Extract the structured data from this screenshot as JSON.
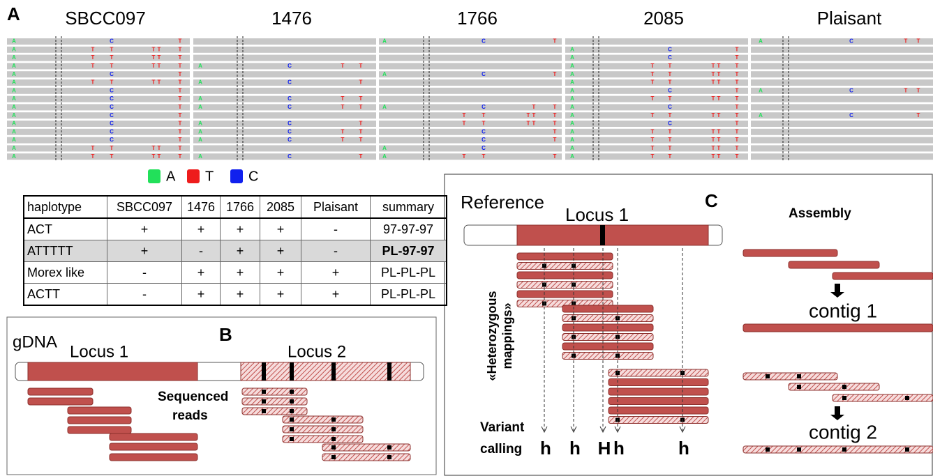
{
  "panel_a": {
    "label": "A",
    "legend": [
      {
        "label": "A",
        "color": "#22e05a"
      },
      {
        "label": "T",
        "color": "#ee1c1c"
      },
      {
        "label": "C",
        "color": "#1020ee"
      }
    ],
    "samples": [
      {
        "name": "SBCC097",
        "rows": [
          [
            "A",
            null,
            "C",
            null,
            null,
            "T"
          ],
          [
            "A",
            "T",
            "T",
            "T",
            "T",
            "T"
          ],
          [
            "A",
            "T",
            "T",
            "T",
            "T",
            "T"
          ],
          [
            "A",
            "T",
            "T",
            "T",
            "T",
            "T"
          ],
          [
            "A",
            null,
            "C",
            null,
            null,
            "T"
          ],
          [
            "A",
            "T",
            "T",
            "T",
            "T",
            "T"
          ],
          [
            "A",
            null,
            "C",
            null,
            null,
            "T"
          ],
          [
            "A",
            null,
            "C",
            null,
            null,
            "T"
          ],
          [
            "A",
            null,
            "C",
            null,
            null,
            "T"
          ],
          [
            "A",
            null,
            "C",
            null,
            null,
            "T"
          ],
          [
            "A",
            null,
            "C",
            null,
            null,
            "T"
          ],
          [
            "A",
            null,
            "C",
            null,
            null,
            "T"
          ],
          [
            "A",
            null,
            "C",
            null,
            null,
            "T"
          ],
          [
            "A",
            "T",
            "T",
            "T",
            "T",
            "T"
          ],
          [
            "A",
            "T",
            "T",
            "T",
            "T",
            "T"
          ]
        ]
      },
      {
        "name": "1476",
        "rows": [
          [
            null,
            null,
            null,
            null
          ],
          [
            null,
            null,
            null,
            null
          ],
          [
            null,
            null,
            null,
            null
          ],
          [
            "A",
            "C",
            "T",
            "T"
          ],
          [
            null,
            null,
            null,
            null
          ],
          [
            "A",
            "C",
            null,
            "T"
          ],
          [
            null,
            null,
            null,
            null
          ],
          [
            "A",
            "C",
            "T",
            "T"
          ],
          [
            "A",
            "C",
            "T",
            "T"
          ],
          [
            null,
            null,
            null,
            null
          ],
          [
            "A",
            "C",
            null,
            "T"
          ],
          [
            "A",
            "C",
            "T",
            "T"
          ],
          [
            "A",
            "C",
            "T",
            "T"
          ],
          [
            null,
            null,
            null,
            null
          ],
          [
            "A",
            "C",
            null,
            "T"
          ]
        ]
      },
      {
        "name": "1766",
        "rows": [
          [
            "A",
            null,
            "C",
            null,
            null,
            "T"
          ],
          [
            null,
            null,
            null,
            null,
            null,
            null
          ],
          [
            null,
            null,
            null,
            null,
            null,
            null
          ],
          [
            null,
            null,
            null,
            null,
            null,
            null
          ],
          [
            "A",
            null,
            "C",
            null,
            null,
            "T"
          ],
          [
            null,
            null,
            null,
            null,
            null,
            null
          ],
          [
            null,
            null,
            null,
            null,
            null,
            null
          ],
          [
            null,
            null,
            null,
            null,
            null,
            null
          ],
          [
            "A",
            null,
            "C",
            null,
            "T",
            "T"
          ],
          [
            null,
            "T",
            "T",
            "T",
            "T",
            "T"
          ],
          [
            null,
            "T",
            "T",
            "T",
            "T",
            "T"
          ],
          [
            null,
            null,
            "C",
            null,
            null,
            "T"
          ],
          [
            null,
            null,
            "C",
            null,
            null,
            "T"
          ],
          [
            "A",
            null,
            "C",
            null,
            null,
            null
          ],
          [
            "A",
            "T",
            "T",
            null,
            null,
            "T"
          ]
        ]
      },
      {
        "name": "2085",
        "rows": [
          [
            null,
            null,
            null,
            null,
            null,
            null
          ],
          [
            "A",
            null,
            "C",
            null,
            null,
            "T"
          ],
          [
            "A",
            null,
            "C",
            null,
            null,
            "T"
          ],
          [
            "A",
            "T",
            "T",
            "T",
            "T",
            "T"
          ],
          [
            "A",
            "T",
            "T",
            "T",
            "T",
            "T"
          ],
          [
            "A",
            "T",
            "T",
            "T",
            "T",
            "T"
          ],
          [
            "A",
            null,
            "C",
            null,
            null,
            "T"
          ],
          [
            "A",
            "T",
            "T",
            "T",
            "T",
            "T"
          ],
          [
            "A",
            null,
            "C",
            null,
            null,
            "T"
          ],
          [
            "A",
            "T",
            "T",
            "T",
            "T",
            "T"
          ],
          [
            "A",
            null,
            "C",
            null,
            null,
            "T"
          ],
          [
            "A",
            "T",
            "T",
            "T",
            "T",
            "T"
          ],
          [
            "A",
            "T",
            "T",
            "T",
            "T",
            "T"
          ],
          [
            "A",
            "T",
            "T",
            "T",
            "T",
            "T"
          ],
          [
            "A",
            "T",
            "T",
            "T",
            "T",
            "T"
          ]
        ]
      },
      {
        "name": "Plaisant",
        "rows": [
          [
            "A",
            "C",
            "T",
            "T"
          ],
          [
            null,
            null,
            null,
            null
          ],
          [
            null,
            null,
            null,
            null
          ],
          [
            null,
            null,
            null,
            null
          ],
          [
            null,
            null,
            null,
            null
          ],
          [
            null,
            null,
            null,
            null
          ],
          [
            "A",
            "C",
            "T",
            "T"
          ],
          [
            null,
            null,
            null,
            null
          ],
          [
            null,
            null,
            null,
            null
          ],
          [
            "A",
            "C",
            null,
            "T"
          ],
          [
            null,
            null,
            null,
            null
          ],
          [
            null,
            null,
            null,
            null
          ],
          [
            null,
            null,
            null,
            null
          ],
          [
            null,
            null,
            null,
            null
          ],
          [
            null,
            null,
            null,
            null
          ]
        ]
      }
    ]
  },
  "table": {
    "header": [
      "haplotype",
      "SBCC097",
      "1476",
      "1766",
      "2085",
      "Plaisant",
      "summary"
    ],
    "rows": [
      [
        "ACT",
        "+",
        "+",
        "+",
        "+",
        "-",
        "97-97-97"
      ],
      [
        "ATTTTT",
        "+",
        "-",
        "+",
        "+",
        "-",
        "PL-97-97"
      ],
      [
        "Morex like",
        "-",
        "+",
        "+",
        "+",
        "+",
        "PL-PL-PL"
      ],
      [
        "ACTT",
        "-",
        "+",
        "+",
        "+",
        "+",
        "PL-PL-PL"
      ]
    ]
  },
  "panel_b": {
    "label": "B",
    "gdna": "gDNA",
    "locus1": "Locus 1",
    "locus2": "Locus 2",
    "reads_text": [
      "Sequenced",
      "reads"
    ]
  },
  "panel_c": {
    "label": "C",
    "reference": "Reference",
    "locus1": "Locus 1",
    "mappings": [
      "«Heterozygous",
      "mappings»"
    ],
    "variant_text": [
      "Variant",
      "calling"
    ],
    "calls": [
      "h",
      "h",
      "H",
      "h",
      "h"
    ],
    "assembly": "Assembly",
    "contig1": "contig 1",
    "contig2": "contig 2"
  }
}
